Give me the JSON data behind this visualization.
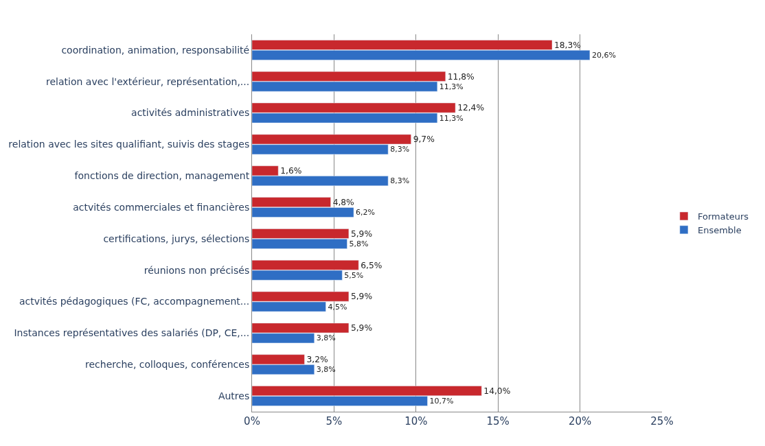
{
  "chart_data": {
    "type": "bar",
    "orientation": "horizontal",
    "categories": [
      "coordination, animation, responsabilité",
      "relation avec l'extérieur, représentation,...",
      "activités administratives",
      "relation avec les sites qualifiant, suivis des stages",
      "fonctions de direction, management",
      "actvités commerciales et financières",
      "certifications, jurys, sélections",
      "réunions non précisés",
      "actvités pédagogiques (FC, accompagnement...",
      "Instances représentatives des salariés (DP, CE,...",
      "recherche, colloques, conférences",
      "Autres"
    ],
    "series": [
      {
        "name": "Formateurs",
        "color": "#c8282d",
        "values": [
          18.3,
          11.8,
          12.4,
          9.7,
          1.6,
          4.8,
          5.9,
          6.5,
          5.9,
          5.9,
          3.2,
          14.0
        ],
        "value_labels": [
          "18,3%",
          "11,8%",
          "12,4%",
          "9,7%",
          "1,6%",
          "4,8%",
          "5,9%",
          "6,5%",
          "5,9%",
          "5,9%",
          "3,2%",
          "14,0%"
        ]
      },
      {
        "name": "Ensemble",
        "color": "#2f6ec4",
        "values": [
          20.6,
          11.3,
          11.3,
          8.3,
          8.3,
          6.2,
          5.8,
          5.5,
          4.5,
          3.8,
          3.8,
          10.7
        ],
        "value_labels": [
          "20,6%",
          "11,3%",
          "11,3%",
          "8,3%",
          "8,3%",
          "6,2%",
          "5,8%",
          "5,5%",
          "4,5%",
          "3,8%",
          "3,8%",
          "10,7%"
        ]
      }
    ],
    "xlim": [
      0,
      25
    ],
    "xticks": [
      {
        "value": 0,
        "label": "0%"
      },
      {
        "value": 5,
        "label": "5%"
      },
      {
        "value": 10,
        "label": "10%"
      },
      {
        "value": 15,
        "label": "15%"
      },
      {
        "value": 20,
        "label": "20%"
      },
      {
        "value": 25,
        "label": "25%"
      }
    ],
    "grid": "x",
    "legend": "right"
  }
}
